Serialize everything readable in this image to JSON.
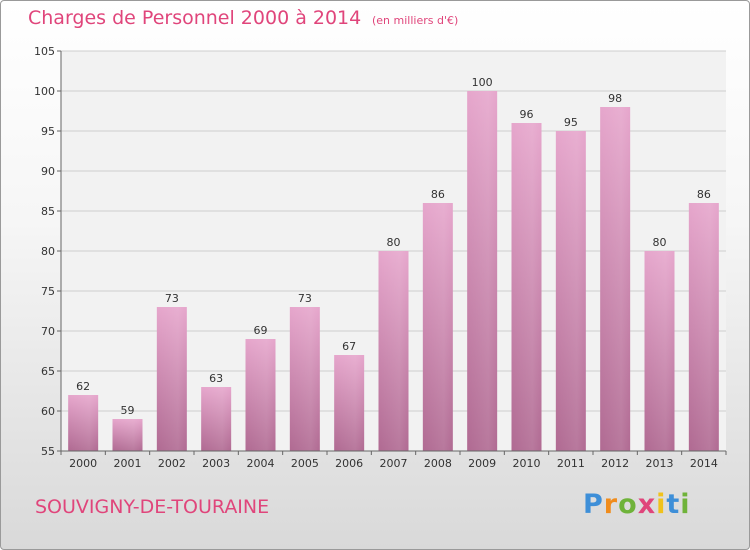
{
  "header": {
    "title": "Charges de Personnel 2000 à 2014",
    "subtitle": "(en milliers d'€)"
  },
  "footer": {
    "town": "SOUVIGNY-DE-TOURAINE",
    "logo_text": "Proxiti"
  },
  "chart_data": {
    "type": "bar",
    "title": "Charges de Personnel 2000 à 2014",
    "subtitle": "(en milliers d'€)",
    "xlabel": "",
    "ylabel": "",
    "categories": [
      "2000",
      "2001",
      "2002",
      "2003",
      "2004",
      "2005",
      "2006",
      "2007",
      "2008",
      "2009",
      "2010",
      "2011",
      "2012",
      "2013",
      "2014"
    ],
    "values": [
      62,
      59,
      73,
      63,
      69,
      73,
      67,
      80,
      86,
      100,
      96,
      95,
      98,
      80,
      86
    ],
    "ylim": [
      55,
      105
    ],
    "yticks": [
      55,
      60,
      65,
      70,
      75,
      80,
      85,
      90,
      95,
      100,
      105
    ],
    "grid": true,
    "bar_color": "#c4709c"
  }
}
